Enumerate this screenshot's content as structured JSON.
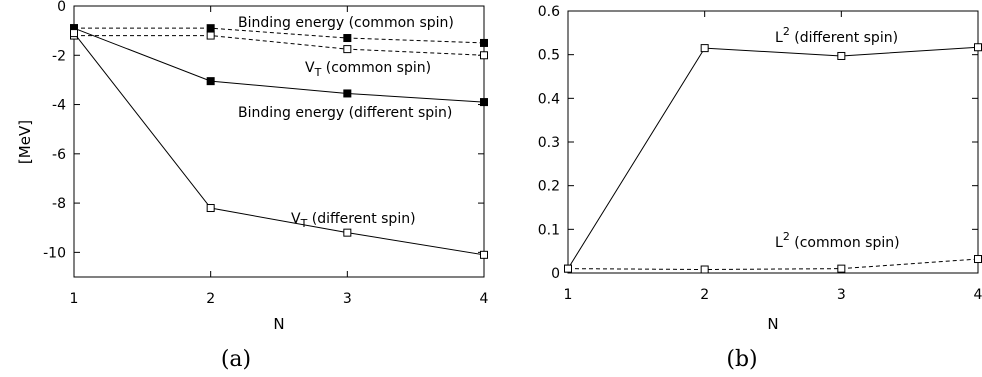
{
  "chart_data": [
    {
      "type": "line",
      "caption": "(a)",
      "xlabel": "N",
      "ylabel": "[MeV]",
      "xlim": [
        1,
        4
      ],
      "ylim": [
        -11,
        0
      ],
      "x_ticks": [
        "1",
        "2",
        "3",
        "4"
      ],
      "y_ticks": [
        "0",
        "-2",
        "-4",
        "-6",
        "-8",
        "-10"
      ],
      "x": [
        1,
        2,
        3,
        4
      ],
      "series": [
        {
          "id": "be-common",
          "marker": "filled",
          "dash": true,
          "values": [
            -0.9,
            -0.9,
            -1.3,
            -1.5
          ],
          "label": {
            "main": "Binding energy (common spin)",
            "sub": "",
            "tail": ""
          }
        },
        {
          "id": "vt-common",
          "marker": "open",
          "dash": true,
          "values": [
            -1.2,
            -1.2,
            -1.75,
            -2.0
          ],
          "label": {
            "main": "V",
            "sub": "T",
            "tail": " (common spin)"
          }
        },
        {
          "id": "be-different",
          "marker": "filled",
          "dash": false,
          "values": [
            -0.9,
            -3.05,
            -3.55,
            -3.9
          ],
          "label": {
            "main": "Binding energy (different spin)",
            "sub": "",
            "tail": ""
          }
        },
        {
          "id": "vt-different",
          "marker": "open",
          "dash": false,
          "values": [
            -1.1,
            -8.2,
            -9.2,
            -10.1
          ],
          "label": {
            "main": "V",
            "sub": "T",
            "tail": " (different spin)"
          }
        }
      ]
    },
    {
      "type": "line",
      "caption": "(b)",
      "xlabel": "N",
      "ylabel": "",
      "xlim": [
        1,
        4
      ],
      "ylim": [
        0,
        0.6
      ],
      "x_ticks": [
        "1",
        "2",
        "3",
        "4"
      ],
      "y_ticks": [
        "0",
        "0.1",
        "0.2",
        "0.3",
        "0.4",
        "0.5",
        "0.6"
      ],
      "x": [
        1,
        2,
        3,
        4
      ],
      "series": [
        {
          "id": "l2-different",
          "marker": "open",
          "dash": false,
          "values": [
            0.01,
            0.515,
            0.497,
            0.517
          ],
          "label": {
            "main": "L",
            "sup": "2",
            "tail": " (different spin)"
          }
        },
        {
          "id": "l2-common",
          "marker": "open",
          "dash": true,
          "values": [
            0.01,
            0.008,
            0.01,
            0.032
          ],
          "label": {
            "main": "L",
            "sup": "2",
            "tail": " (common spin)"
          }
        }
      ]
    }
  ]
}
